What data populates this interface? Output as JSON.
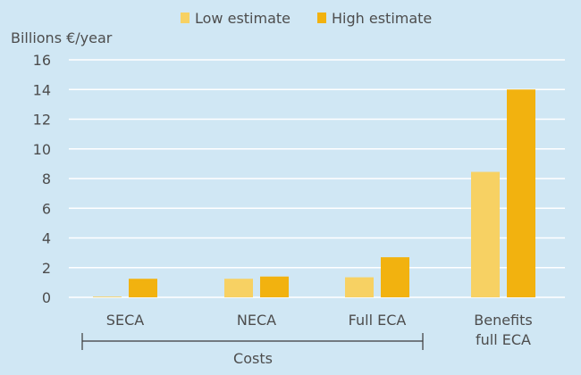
{
  "chart_data": {
    "type": "bar",
    "title": "",
    "ylabel": "Billions €/year",
    "xlabel": "",
    "ylim": [
      0,
      16
    ],
    "yticks": [
      0,
      2,
      4,
      6,
      8,
      10,
      12,
      14,
      16
    ],
    "grid": true,
    "legend_position": "top-center",
    "categories": [
      "SECA",
      "NECA",
      "Full ECA",
      "Benefits full ECA"
    ],
    "category_lines": [
      [
        "SECA"
      ],
      [
        "NECA"
      ],
      [
        "Full ECA"
      ],
      [
        "Benefits",
        "full ECA"
      ]
    ],
    "series": [
      {
        "name": "Low estimate",
        "color": "#f7d163",
        "values": [
          0.05,
          1.25,
          1.35,
          8.45
        ]
      },
      {
        "name": "High estimate",
        "color": "#f2b20f",
        "values": [
          1.25,
          1.4,
          2.7,
          14.0
        ]
      }
    ],
    "group_annotation": {
      "label": "Costs",
      "spans": [
        "SECA",
        "NECA",
        "Full ECA"
      ]
    }
  }
}
